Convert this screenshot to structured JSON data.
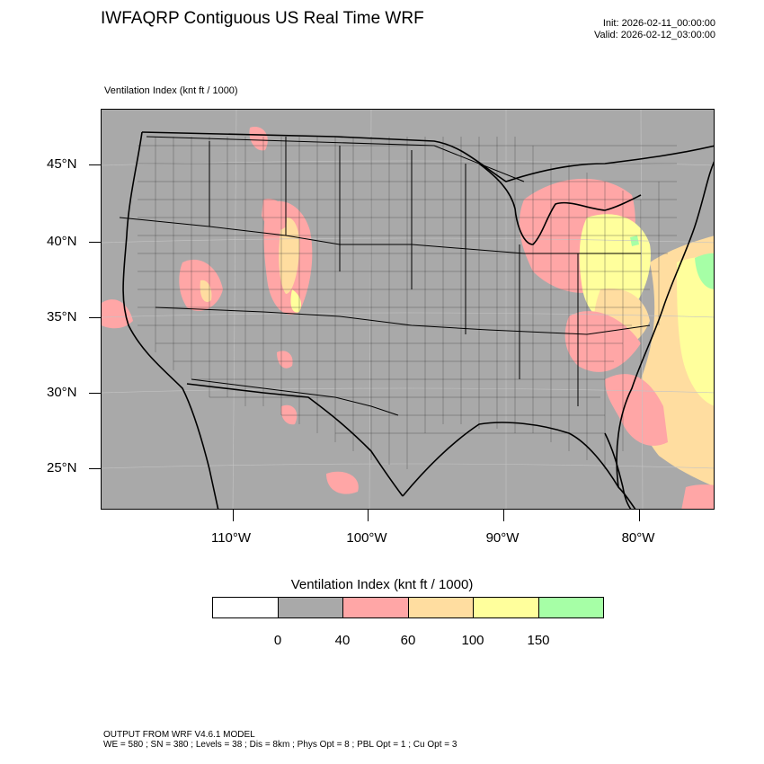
{
  "header": {
    "title": "IWFAQRP Contiguous US Real Time WRF",
    "init": "Init: 2026-02-11_00:00:00",
    "valid": "Valid: 2026-02-12_03:00:00"
  },
  "field": {
    "label": "Ventilation Index   (knt ft / 1000)"
  },
  "map": {
    "background_color": "#a9a9a9",
    "latitude_labels": [
      "45°N",
      "40°N",
      "35°N",
      "30°N",
      "25°N"
    ],
    "longitude_labels": [
      "110°W",
      "100°W",
      "90°W",
      "80°W"
    ]
  },
  "colorbar": {
    "title": "Ventilation Index  (knt ft / 1000)",
    "bins": [
      {
        "color": "#ffffff"
      },
      {
        "color": "#a9a9a9"
      },
      {
        "color": "#ffa6a6"
      },
      {
        "color": "#ffdda0"
      },
      {
        "color": "#ffff9c"
      },
      {
        "color": "#a6ffa6"
      }
    ],
    "tick_labels": [
      "0",
      "40",
      "60",
      "100",
      "150"
    ]
  },
  "footer": {
    "line1": "OUTPUT FROM WRF V4.6.1 MODEL",
    "line2": "WE = 580 ; SN = 380 ; Levels = 38 ; Dis = 8km ; Phys Opt = 8 ; PBL Opt = 1 ; Cu Opt = 3"
  }
}
